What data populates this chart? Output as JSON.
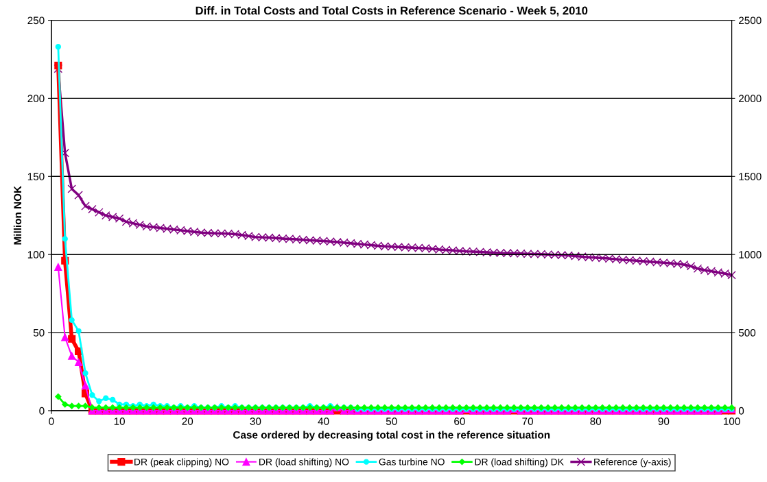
{
  "chart_data": {
    "type": "line",
    "title": "Diff. in Total Costs and Total Costs in Reference Scenario - Week 5, 2010",
    "xlabel": "Case ordered by decreasing total cost in the reference situation",
    "ylabel": "Million NOK",
    "x": [
      1,
      2,
      3,
      4,
      5,
      6,
      7,
      8,
      9,
      10,
      11,
      12,
      13,
      14,
      15,
      16,
      17,
      18,
      19,
      20,
      21,
      22,
      23,
      24,
      25,
      26,
      27,
      28,
      29,
      30,
      31,
      32,
      33,
      34,
      35,
      36,
      37,
      38,
      39,
      40,
      41,
      42,
      43,
      44,
      45,
      46,
      47,
      48,
      49,
      50,
      51,
      52,
      53,
      54,
      55,
      56,
      57,
      58,
      59,
      60,
      61,
      62,
      63,
      64,
      65,
      66,
      67,
      68,
      69,
      70,
      71,
      72,
      73,
      74,
      75,
      76,
      77,
      78,
      79,
      80,
      81,
      82,
      83,
      84,
      85,
      86,
      87,
      88,
      89,
      90,
      91,
      92,
      93,
      94,
      95,
      96,
      97,
      98,
      99,
      100
    ],
    "xlim": [
      0,
      100
    ],
    "xticks": [
      0,
      10,
      20,
      30,
      40,
      50,
      60,
      70,
      80,
      90,
      100
    ],
    "ylim": [
      0,
      250
    ],
    "yticks": [
      0,
      50,
      100,
      150,
      200,
      250
    ],
    "y2lim": [
      0,
      2500
    ],
    "y2ticks": [
      0,
      500,
      1000,
      1500,
      2000,
      2500
    ],
    "grid": "y",
    "legend": "bottom",
    "line_style": "solid",
    "series": [
      {
        "name": "DR (peak clipping) NO",
        "color": "#ff0000",
        "marker": "square",
        "values": [
          221,
          96,
          46,
          38,
          11,
          0,
          0,
          0,
          0,
          0,
          0,
          0,
          0,
          0,
          0,
          0,
          0,
          0,
          0,
          0,
          0,
          0,
          0,
          0,
          0,
          0,
          0,
          0,
          0,
          0,
          0,
          0,
          0,
          0,
          0,
          0,
          0,
          0,
          0,
          0,
          0,
          0,
          0,
          0,
          0,
          0,
          0,
          0,
          0,
          0,
          0,
          0,
          0,
          0,
          0,
          0,
          0,
          0,
          0,
          0,
          0,
          0,
          0,
          0,
          0,
          0,
          0,
          0,
          0,
          0,
          0,
          0,
          0,
          0,
          0,
          0,
          0,
          0,
          0,
          0,
          0,
          0,
          0,
          0,
          0,
          0,
          0,
          0,
          0,
          0,
          0,
          0,
          0,
          0,
          0,
          0,
          0,
          0,
          0,
          0
        ]
      },
      {
        "name": "DR (load shifting) NO",
        "color": "#ff00ff",
        "marker": "triangle",
        "values": [
          92,
          47,
          35,
          31,
          16,
          0,
          0,
          0,
          0,
          0,
          0,
          0,
          0,
          0,
          0,
          0,
          0,
          0,
          0,
          0,
          0,
          0,
          0,
          0,
          0,
          0,
          0,
          0,
          0,
          0,
          0,
          0,
          0,
          0,
          0,
          0,
          0,
          0,
          0,
          0,
          0,
          2,
          0,
          0,
          0,
          0,
          0,
          0,
          0,
          0,
          0,
          0,
          0,
          0,
          0,
          0,
          0,
          0,
          0,
          0,
          1,
          0,
          0,
          0,
          0,
          0,
          0,
          1,
          0,
          0,
          0,
          0,
          0,
          0,
          0,
          0,
          0,
          0,
          0,
          0,
          0,
          0,
          0,
          0,
          0,
          0,
          0,
          0,
          0,
          0,
          0,
          0,
          0,
          0,
          0,
          0,
          0,
          0,
          1,
          1
        ]
      },
      {
        "name": "Gas turbine NO",
        "color": "#00ffff",
        "marker": "circle",
        "values": [
          233,
          110,
          58,
          51,
          24,
          10,
          6,
          8,
          7,
          4,
          4,
          3,
          4,
          3,
          4,
          3,
          3,
          2,
          3,
          2,
          3,
          2,
          2,
          2,
          3,
          2,
          3,
          2,
          2,
          2,
          2,
          2,
          2,
          2,
          2,
          2,
          2,
          3,
          2,
          2,
          3,
          2,
          2,
          2,
          1,
          1,
          1,
          1,
          1,
          1,
          1,
          1,
          1,
          1,
          1,
          1,
          1,
          1,
          1,
          1,
          1,
          1,
          1,
          1,
          1,
          1,
          1,
          1,
          1,
          1,
          1,
          1,
          1,
          1,
          1,
          1,
          1,
          1,
          1,
          1,
          1,
          1,
          1,
          1,
          1,
          1,
          1,
          1,
          1,
          1,
          1,
          1,
          1,
          1,
          1,
          1,
          1,
          1,
          1,
          1
        ]
      },
      {
        "name": "DR (load shifting) DK",
        "color": "#00ff00",
        "marker": "diamond",
        "values": [
          9,
          4,
          3,
          3,
          3,
          2,
          2,
          2,
          2,
          2,
          2,
          2,
          2,
          2,
          2,
          2,
          2,
          2,
          2,
          2,
          2,
          2,
          2,
          2,
          2,
          2,
          2,
          2,
          2,
          2,
          2,
          2,
          2,
          2,
          2,
          2,
          2,
          2,
          2,
          2,
          2,
          2,
          2,
          2,
          2,
          2,
          2,
          2,
          2,
          2,
          2,
          2,
          2,
          2,
          2,
          2,
          2,
          2,
          2,
          2,
          2,
          2,
          2,
          2,
          2,
          2,
          2,
          2,
          2,
          2,
          2,
          2,
          2,
          2,
          2,
          2,
          2,
          2,
          2,
          2,
          2,
          2,
          2,
          2,
          2,
          2,
          2,
          2,
          2,
          2,
          2,
          2,
          2,
          2,
          2,
          2,
          2,
          2,
          2,
          2
        ]
      },
      {
        "name": "Reference (y-axis)",
        "color": "#800080",
        "marker": "cross",
        "axis": "y2",
        "values": [
          2190,
          1650,
          1420,
          1380,
          1310,
          1290,
          1270,
          1250,
          1240,
          1230,
          1210,
          1200,
          1190,
          1180,
          1175,
          1170,
          1165,
          1160,
          1155,
          1150,
          1145,
          1140,
          1138,
          1136,
          1135,
          1133,
          1130,
          1125,
          1118,
          1112,
          1110,
          1108,
          1105,
          1102,
          1100,
          1097,
          1094,
          1091,
          1089,
          1086,
          1083,
          1080,
          1076,
          1072,
          1068,
          1064,
          1060,
          1056,
          1052,
          1050,
          1048,
          1046,
          1044,
          1042,
          1040,
          1036,
          1032,
          1029,
          1026,
          1023,
          1020,
          1018,
          1016,
          1014,
          1012,
          1010,
          1009,
          1008,
          1006,
          1004,
          1003,
          1002,
          1000,
          998,
          996,
          994,
          990,
          986,
          982,
          980,
          977,
          974,
          970,
          966,
          963,
          960,
          957,
          954,
          950,
          947,
          944,
          940,
          935,
          925,
          910,
          900,
          893,
          885,
          878,
          868
        ]
      }
    ]
  }
}
